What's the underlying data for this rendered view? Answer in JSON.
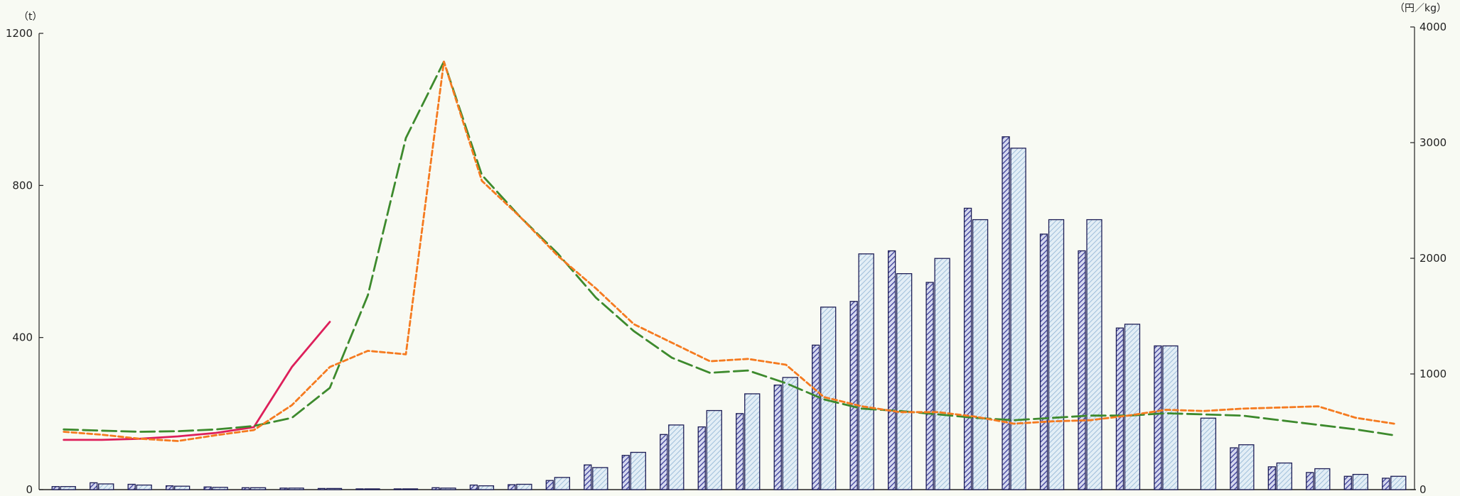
{
  "chart_data": {
    "type": "bar",
    "left_axis": {
      "unit": "（t）",
      "min": 0,
      "max": 1200,
      "ticks": [
        0,
        400,
        800,
        1200
      ]
    },
    "right_axis": {
      "unit": "（円／kg）",
      "min": 0,
      "max": 4000,
      "ticks": [
        0,
        1000,
        2000,
        3000,
        4000
      ]
    },
    "x_count": 36,
    "bar_series": [
      {
        "style": "dark-hatch",
        "axis": "left",
        "values": [
          8,
          18,
          14,
          10,
          7,
          5,
          4,
          3,
          2,
          2,
          5,
          12,
          13,
          24,
          65,
          90,
          145,
          165,
          200,
          275,
          380,
          495,
          628,
          545,
          740,
          928,
          672,
          628,
          425,
          378,
          0,
          110,
          60,
          45,
          35,
          30
        ]
      },
      {
        "style": "light-hatch",
        "axis": "left",
        "values": [
          8,
          15,
          12,
          9,
          6,
          5,
          4,
          3,
          2,
          2,
          4,
          10,
          14,
          32,
          58,
          98,
          170,
          208,
          252,
          295,
          480,
          620,
          568,
          608,
          710,
          898,
          710,
          710,
          435,
          378,
          188,
          118,
          70,
          55,
          40,
          35
        ]
      }
    ],
    "line_series": [
      {
        "color": "#dd1f5a",
        "dash": "solid",
        "axis": "right",
        "values": [
          430,
          430,
          440,
          460,
          490,
          540,
          1060,
          1450
        ]
      },
      {
        "color": "#3d8a2d",
        "dash": "long",
        "axis": "right",
        "values": [
          520,
          510,
          500,
          505,
          520,
          550,
          620,
          880,
          1680,
          3040,
          3700,
          2720,
          2360,
          2040,
          1660,
          1370,
          1140,
          1010,
          1030,
          920,
          780,
          700,
          680,
          650,
          620,
          600,
          620,
          640,
          640,
          660,
          650,
          640,
          600,
          560,
          520,
          470
        ]
      },
      {
        "color": "#f57a1f",
        "dash": "short",
        "axis": "right",
        "values": [
          500,
          475,
          440,
          420,
          470,
          515,
          730,
          1060,
          1200,
          1170,
          3700,
          2670,
          2360,
          2020,
          1740,
          1430,
          1270,
          1110,
          1130,
          1080,
          800,
          720,
          670,
          670,
          630,
          570,
          590,
          600,
          640,
          690,
          680,
          700,
          710,
          720,
          620,
          570
        ]
      }
    ]
  }
}
